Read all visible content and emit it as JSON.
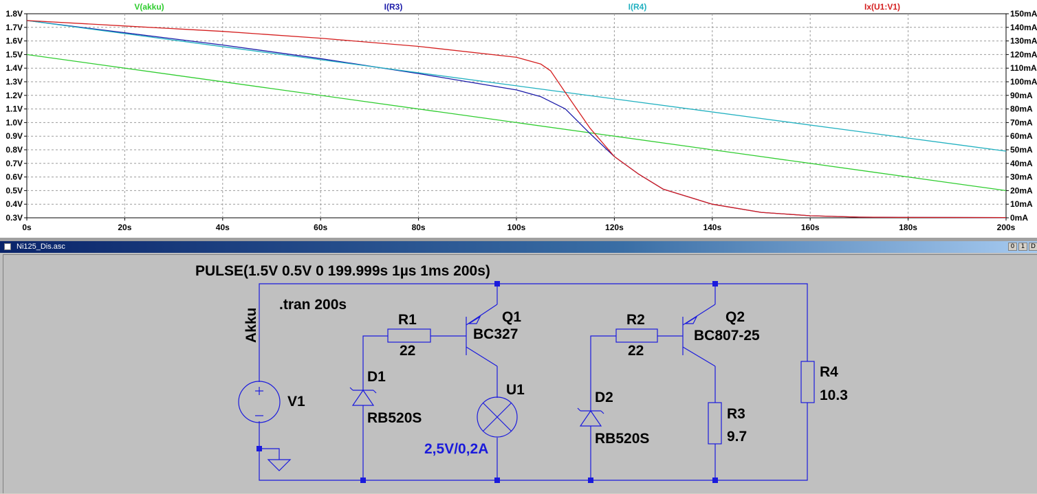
{
  "plot": {
    "traces": [
      {
        "label": "V(akku)",
        "color": "#2ecc2e"
      },
      {
        "label": "I(R3)",
        "color": "#1a1aa8"
      },
      {
        "label": "I(R4)",
        "color": "#20b0c0"
      },
      {
        "label": "Ix(U1:V1)",
        "color": "#d41e1e"
      }
    ],
    "x_ticks": [
      "0s",
      "20s",
      "40s",
      "60s",
      "80s",
      "100s",
      "120s",
      "140s",
      "160s",
      "180s",
      "200s"
    ],
    "y_left_ticks": [
      "1.8V",
      "1.7V",
      "1.6V",
      "1.5V",
      "1.4V",
      "1.3V",
      "1.2V",
      "1.1V",
      "1.0V",
      "0.9V",
      "0.8V",
      "0.7V",
      "0.6V",
      "0.5V",
      "0.4V",
      "0.3V"
    ],
    "y_right_ticks": [
      "150mA",
      "140mA",
      "130mA",
      "120mA",
      "110mA",
      "100mA",
      "90mA",
      "80mA",
      "70mA",
      "60mA",
      "50mA",
      "40mA",
      "30mA",
      "20mA",
      "10mA",
      "0mA"
    ]
  },
  "chart_data": {
    "type": "line",
    "xlabel": "",
    "ylabel": "",
    "xlim": [
      0,
      200
    ],
    "ylim_left": [
      0.3,
      1.8
    ],
    "ylim_right": [
      0,
      150
    ],
    "grid": true,
    "series": [
      {
        "name": "V(akku)",
        "axis": "left",
        "unit": "V",
        "x": [
          0,
          50,
          100,
          150,
          200
        ],
        "y": [
          1.5,
          1.25,
          1.0,
          0.75,
          0.5
        ]
      },
      {
        "name": "I(R3)",
        "axis": "right",
        "unit": "mA",
        "x": [
          0,
          20,
          40,
          60,
          80,
          100,
          105,
          110,
          115,
          120,
          125,
          130,
          140,
          150,
          160,
          170,
          178,
          200
        ],
        "y": [
          145,
          136,
          127,
          117,
          106,
          94,
          89,
          80,
          62,
          45,
          32,
          21,
          10,
          4,
          1.5,
          0.5,
          0.3,
          0.2
        ]
      },
      {
        "name": "I(R4)",
        "axis": "right",
        "unit": "mA",
        "x": [
          0,
          50,
          100,
          150,
          200
        ],
        "y": [
          145,
          121,
          97,
          73,
          49
        ]
      },
      {
        "name": "Ix(U1:V1)",
        "axis": "right",
        "unit": "mA",
        "x": [
          0,
          20,
          40,
          60,
          80,
          100,
          105,
          107,
          110,
          115,
          120,
          125,
          130,
          140,
          150,
          160,
          170,
          178,
          200
        ],
        "y": [
          145,
          141,
          137,
          132,
          126,
          118,
          113,
          108,
          92,
          66,
          45,
          32,
          21,
          10,
          4,
          1.5,
          0.5,
          0.3,
          0.2
        ]
      }
    ]
  },
  "schematic": {
    "window_title": "Ni125_Dis.asc",
    "window_buttons": [
      "0",
      "1",
      "D"
    ],
    "source_spec": "PULSE(1.5V 0.5V 0 199.999s 1µs 1ms 200s)",
    "directive": ".tran 200s",
    "net_label": "Akku",
    "source": {
      "name": "V1"
    },
    "r1": {
      "name": "R1",
      "value": "22"
    },
    "r2": {
      "name": "R2",
      "value": "22"
    },
    "r3": {
      "name": "R3",
      "value": "9.7"
    },
    "r4": {
      "name": "R4",
      "value": "10.3"
    },
    "q1": {
      "name": "Q1",
      "model": "BC327"
    },
    "q2": {
      "name": "Q2",
      "model": "BC807-25"
    },
    "d1": {
      "name": "D1",
      "model": "RB520S"
    },
    "d2": {
      "name": "D2",
      "model": "RB520S"
    },
    "u1": {
      "name": "U1",
      "rating": "2,5V/0,2A"
    }
  }
}
